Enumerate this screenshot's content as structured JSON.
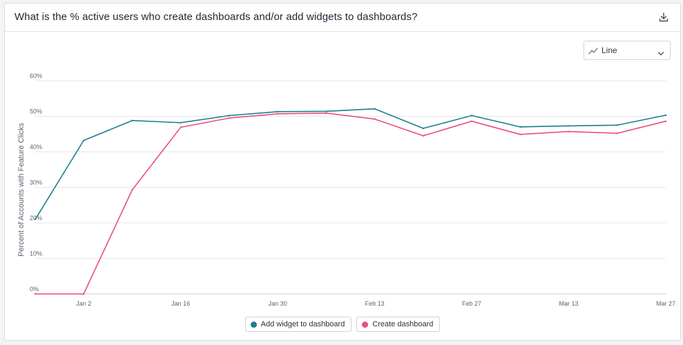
{
  "header": {
    "title": "What is the % active users who create dashboards and/or add widgets to dashboards?",
    "download_icon": "download-icon"
  },
  "view_select": {
    "label": "Line",
    "icon": "line-chart-icon",
    "chevron": "chevron-down-icon"
  },
  "chart_data": {
    "type": "line",
    "title": "What is the % active users who create dashboards and/or add widgets to dashboards?",
    "xlabel": "",
    "ylabel": "Percent of Accounts with Feature Clicks",
    "ylim": [
      0,
      60
    ],
    "yticks": [
      "0%",
      "10%",
      "20%",
      "30%",
      "40%",
      "50%",
      "60%"
    ],
    "xticks": [
      "Jan 2",
      "Jan 16",
      "Jan 30",
      "Feb 13",
      "Feb 27",
      "Mar 13",
      "Mar 27"
    ],
    "x": [
      "Dec 26",
      "Jan 2",
      "Jan 9",
      "Jan 16",
      "Jan 23",
      "Jan 30",
      "Feb 6",
      "Feb 13",
      "Feb 20",
      "Feb 27",
      "Mar 6",
      "Mar 13",
      "Mar 20",
      "Mar 27"
    ],
    "grid": true,
    "legend_position": "bottom",
    "series": [
      {
        "name": "Add widget to dashboard",
        "color": "#1a7f8e",
        "values": [
          21,
          43.2,
          48.8,
          48.2,
          50.2,
          51.3,
          51.4,
          52.1,
          46.6,
          50.2,
          47.0,
          47.3,
          47.5,
          50.3
        ]
      },
      {
        "name": "Create dashboard",
        "color": "#ee4d7a",
        "values": [
          0,
          0,
          29.3,
          46.9,
          49.5,
          50.7,
          50.9,
          49.2,
          44.5,
          48.6,
          44.9,
          45.7,
          45.2,
          48.6
        ]
      }
    ]
  }
}
